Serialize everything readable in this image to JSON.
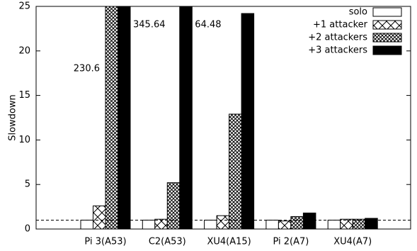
{
  "chart_data": {
    "type": "bar",
    "ylabel": "Slowdown",
    "categories": [
      "Pi 3(A53)",
      "C2(A53)",
      "XU4(A15)",
      "Pi 2(A7)",
      "XU4(A7)"
    ],
    "series": [
      {
        "name": "solo",
        "color": "#ffffff",
        "pattern": "none",
        "values": [
          1,
          1,
          1,
          1,
          1
        ]
      },
      {
        "name": "+1 attacker",
        "color": "#000000",
        "pattern": "cross",
        "values": [
          2.6,
          1.1,
          1.5,
          0.9,
          1.1
        ]
      },
      {
        "name": "+2 attackers",
        "color": "#000000",
        "pattern": "crosshatch",
        "values": [
          230.6,
          5.2,
          12.9,
          1.4,
          1.1
        ],
        "value_labels": [
          "230.6",
          null,
          null,
          null,
          null
        ]
      },
      {
        "name": "+3 attackers",
        "color": "#000000",
        "pattern": "solid",
        "values": [
          345.64,
          64.48,
          24.2,
          1.8,
          1.2
        ],
        "value_labels": [
          "345.64",
          "64.48",
          null,
          null,
          null
        ]
      }
    ],
    "ylim": [
      0,
      25
    ],
    "yticks": [
      0,
      5,
      10,
      15,
      20,
      25
    ],
    "hline": 1,
    "legend": "top-right"
  }
}
